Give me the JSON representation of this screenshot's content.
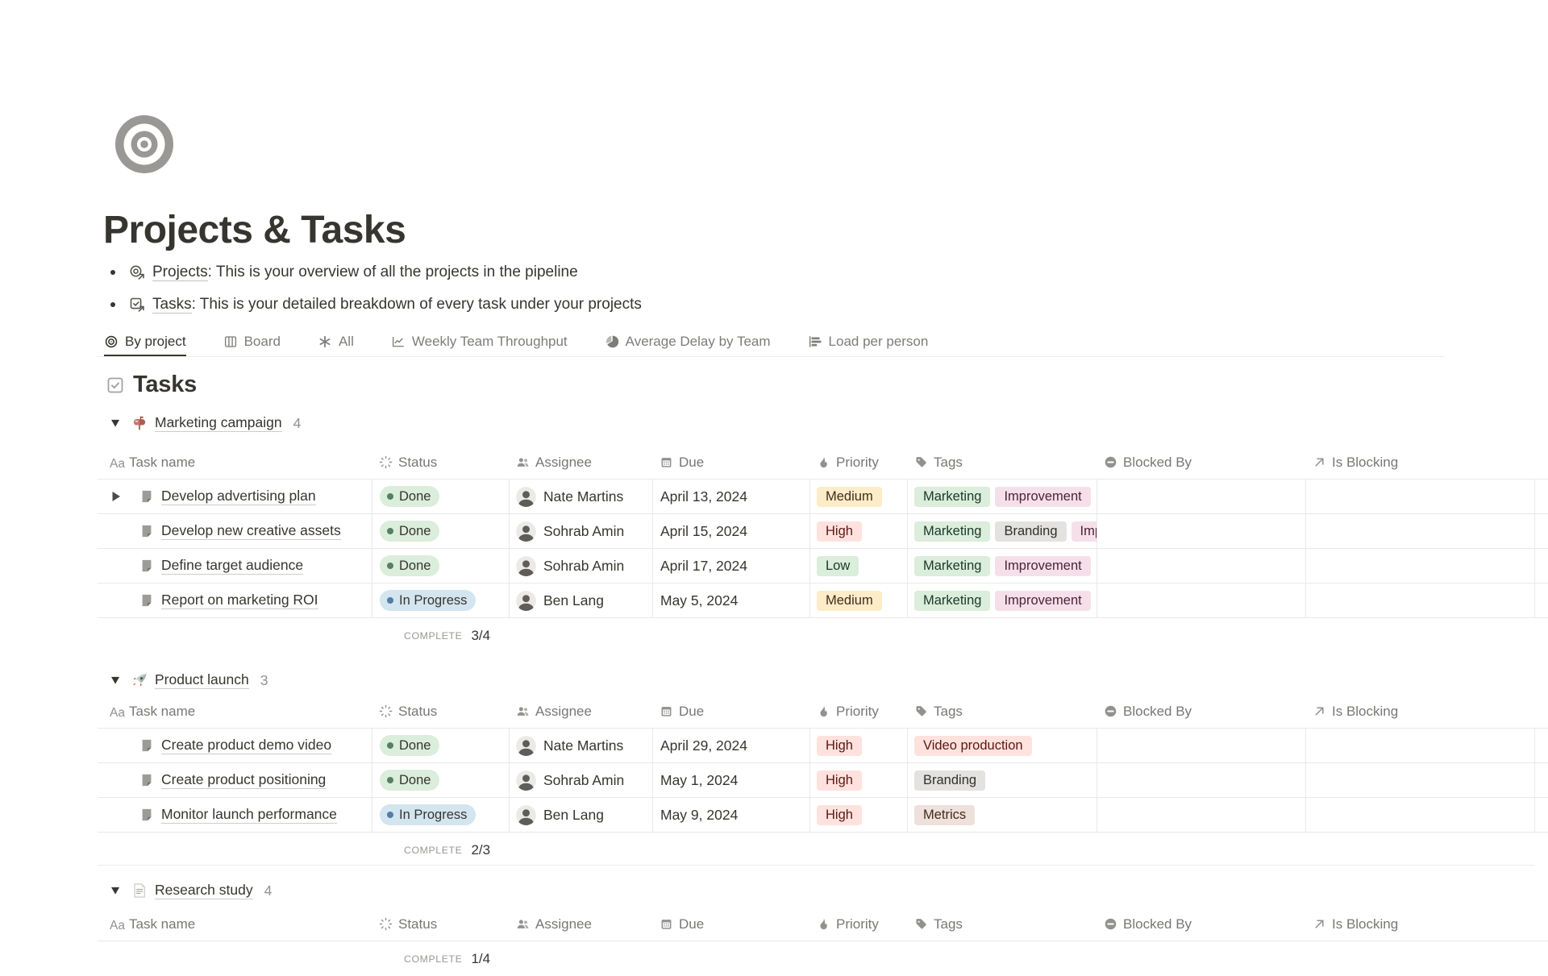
{
  "page": {
    "title": "Projects & Tasks",
    "icon": "target-icon"
  },
  "intro": [
    {
      "icon": "target-link-icon",
      "link": "Projects",
      "rest": ": This is your overview of all the projects in the pipeline"
    },
    {
      "icon": "checkbox-link-icon",
      "link": "Tasks",
      "rest": ": This is your detailed breakdown of every task under your projects"
    }
  ],
  "view_tabs": [
    {
      "label": "By project",
      "icon": "target-icon",
      "active": true
    },
    {
      "label": "Board",
      "icon": "board-icon",
      "active": false
    },
    {
      "label": "All",
      "icon": "asterisk-icon",
      "active": false
    },
    {
      "label": "Weekly Team Throughput",
      "icon": "line-chart-icon",
      "active": false
    },
    {
      "label": "Average Delay by Team",
      "icon": "pie-chart-icon",
      "active": false
    },
    {
      "label": "Load per person",
      "icon": "bar-chart-icon",
      "active": false
    }
  ],
  "section": {
    "title": "Tasks",
    "icon": "checkbox-icon"
  },
  "columns": [
    {
      "label": "Task name",
      "icon": "text-icon"
    },
    {
      "label": "Status",
      "icon": "status-spinner-icon"
    },
    {
      "label": "Assignee",
      "icon": "people-icon"
    },
    {
      "label": "Due",
      "icon": "calendar-icon"
    },
    {
      "label": "Priority",
      "icon": "flame-icon"
    },
    {
      "label": "Tags",
      "icon": "tag-icon"
    },
    {
      "label": "Blocked By",
      "icon": "blocked-icon"
    },
    {
      "label": "Is Blocking",
      "icon": "arrow-up-right-icon"
    }
  ],
  "groups": [
    {
      "name": "Marketing campaign",
      "emoji": "mailbox-icon",
      "count": "4",
      "aggregate": {
        "label": "COMPLETE",
        "value": "3/4"
      },
      "rows": [
        {
          "task": "Develop advertising plan",
          "has_toggle": true,
          "status": "Done",
          "status_color": "done",
          "assignee": "Nate Martins",
          "due": "April 13, 2024",
          "priority": "Medium",
          "priority_color": "yellow",
          "tags": [
            {
              "label": "Marketing",
              "color": "green"
            },
            {
              "label": "Improvement",
              "color": "pink"
            }
          ],
          "blocked_by": "",
          "is_blocking": ""
        },
        {
          "task": "Develop new creative assets",
          "has_toggle": false,
          "status": "Done",
          "status_color": "done",
          "assignee": "Sohrab Amin",
          "due": "April 15, 2024",
          "priority": "High",
          "priority_color": "red",
          "tags": [
            {
              "label": "Marketing",
              "color": "green"
            },
            {
              "label": "Branding",
              "color": "gray"
            },
            {
              "label": "Improvement",
              "color": "pink"
            }
          ],
          "blocked_by": "",
          "is_blocking": ""
        },
        {
          "task": "Define target audience",
          "has_toggle": false,
          "status": "Done",
          "status_color": "done",
          "assignee": "Sohrab Amin",
          "due": "April 17, 2024",
          "priority": "Low",
          "priority_color": "green",
          "tags": [
            {
              "label": "Marketing",
              "color": "green"
            },
            {
              "label": "Improvement",
              "color": "pink"
            }
          ],
          "blocked_by": "",
          "is_blocking": ""
        },
        {
          "task": "Report on marketing ROI",
          "has_toggle": false,
          "status": "In Progress",
          "status_color": "inprogress",
          "assignee": "Ben Lang",
          "due": "May 5, 2024",
          "priority": "Medium",
          "priority_color": "yellow",
          "tags": [
            {
              "label": "Marketing",
              "color": "green"
            },
            {
              "label": "Improvement",
              "color": "pink"
            }
          ],
          "blocked_by": "",
          "is_blocking": ""
        }
      ]
    },
    {
      "name": "Product launch",
      "emoji": "rocket-icon",
      "count": "3",
      "aggregate": {
        "label": "COMPLETE",
        "value": "2/3"
      },
      "rows": [
        {
          "task": "Create product demo video",
          "has_toggle": false,
          "status": "Done",
          "status_color": "done",
          "assignee": "Nate Martins",
          "due": "April 29, 2024",
          "priority": "High",
          "priority_color": "red",
          "tags": [
            {
              "label": "Video production",
              "color": "red"
            }
          ],
          "blocked_by": "",
          "is_blocking": ""
        },
        {
          "task": "Create product positioning",
          "has_toggle": false,
          "status": "Done",
          "status_color": "done",
          "assignee": "Sohrab Amin",
          "due": "May 1, 2024",
          "priority": "High",
          "priority_color": "red",
          "tags": [
            {
              "label": "Branding",
              "color": "gray"
            }
          ],
          "blocked_by": "",
          "is_blocking": ""
        },
        {
          "task": "Monitor launch performance",
          "has_toggle": false,
          "status": "In Progress",
          "status_color": "inprogress",
          "assignee": "Ben Lang",
          "due": "May 9, 2024",
          "priority": "High",
          "priority_color": "red",
          "tags": [
            {
              "label": "Metrics",
              "color": "brown"
            }
          ],
          "blocked_by": "",
          "is_blocking": ""
        }
      ]
    },
    {
      "name": "Research study",
      "emoji": "document-icon",
      "count": "4",
      "aggregate": {
        "label": "COMPLETE",
        "value": "1/4"
      },
      "rows": []
    }
  ],
  "colors": {
    "status": {
      "done": {
        "bg": "#DBEDDB",
        "dot": "#548164"
      },
      "inprogress": {
        "bg": "#D3E5EF",
        "dot": "#527DA5"
      }
    },
    "pills": {
      "green": {
        "bg": "#DBEDDB",
        "text": "#1C3829"
      },
      "blue": {
        "bg": "#D3E5EF",
        "text": "#183347"
      },
      "yellow": {
        "bg": "#FDECC8",
        "text": "#402C1B"
      },
      "red": {
        "bg": "#FFE2DD",
        "text": "#5D1715"
      },
      "pink": {
        "bg": "#F5E0E9",
        "text": "#4C2337"
      },
      "gray": {
        "bg": "#E3E2E0",
        "text": "#32302C"
      },
      "brown": {
        "bg": "#EEE0DA",
        "text": "#442A1E"
      }
    },
    "accent_underline": "#37352F",
    "table_border": "#E9E9E7"
  }
}
